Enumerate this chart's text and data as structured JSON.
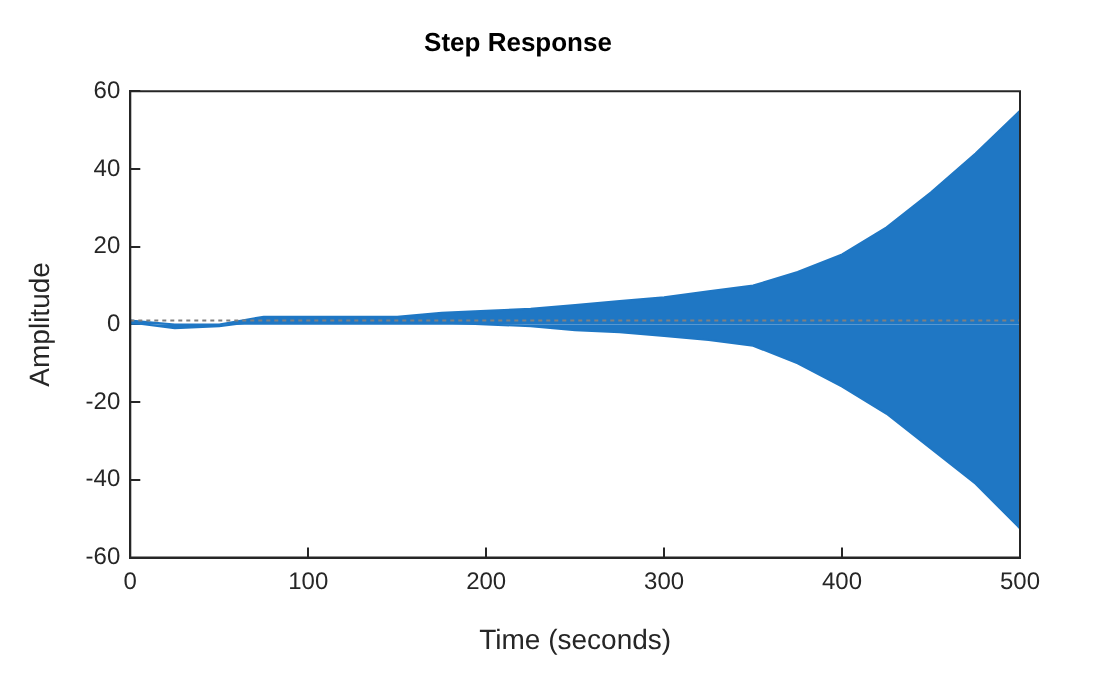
{
  "chart_data": {
    "type": "area",
    "title": "Step Response",
    "xlabel": "Time (seconds)",
    "ylabel": "Amplitude",
    "x": [
      0,
      25,
      50,
      75,
      100,
      125,
      150,
      175,
      200,
      225,
      250,
      275,
      300,
      325,
      350,
      375,
      400,
      425,
      450,
      475,
      500
    ],
    "series": [
      {
        "color": "#1f77c4",
        "values": [
          1,
          0,
          0,
          2,
          2,
          2,
          2,
          3,
          3.5,
          4,
          5,
          6,
          7,
          8.5,
          10,
          13.5,
          18,
          25,
          34,
          44,
          55
        ]
      },
      {
        "color": "#1f77c4",
        "values": [
          0.5,
          -1,
          -0.5,
          1,
          1.5,
          1.5,
          1,
          0.5,
          0,
          -0.5,
          -1.5,
          -2,
          -3,
          -4,
          -5.5,
          -10,
          -16,
          -23,
          -32,
          -41,
          -52.5
        ]
      }
    ],
    "xlim": [
      0,
      500
    ],
    "xticks": [
      0,
      100,
      200,
      300,
      400,
      500
    ],
    "ylim": [
      -60,
      60
    ],
    "yticks": [
      -60,
      -40,
      -20,
      0,
      20,
      40,
      60
    ],
    "ref_lines": [
      {
        "axis": "y",
        "value": 1,
        "color": "#808080",
        "line_style": "dotted"
      }
    ],
    "grid": false,
    "legend": false,
    "marker": "none",
    "line_style": "solid"
  }
}
